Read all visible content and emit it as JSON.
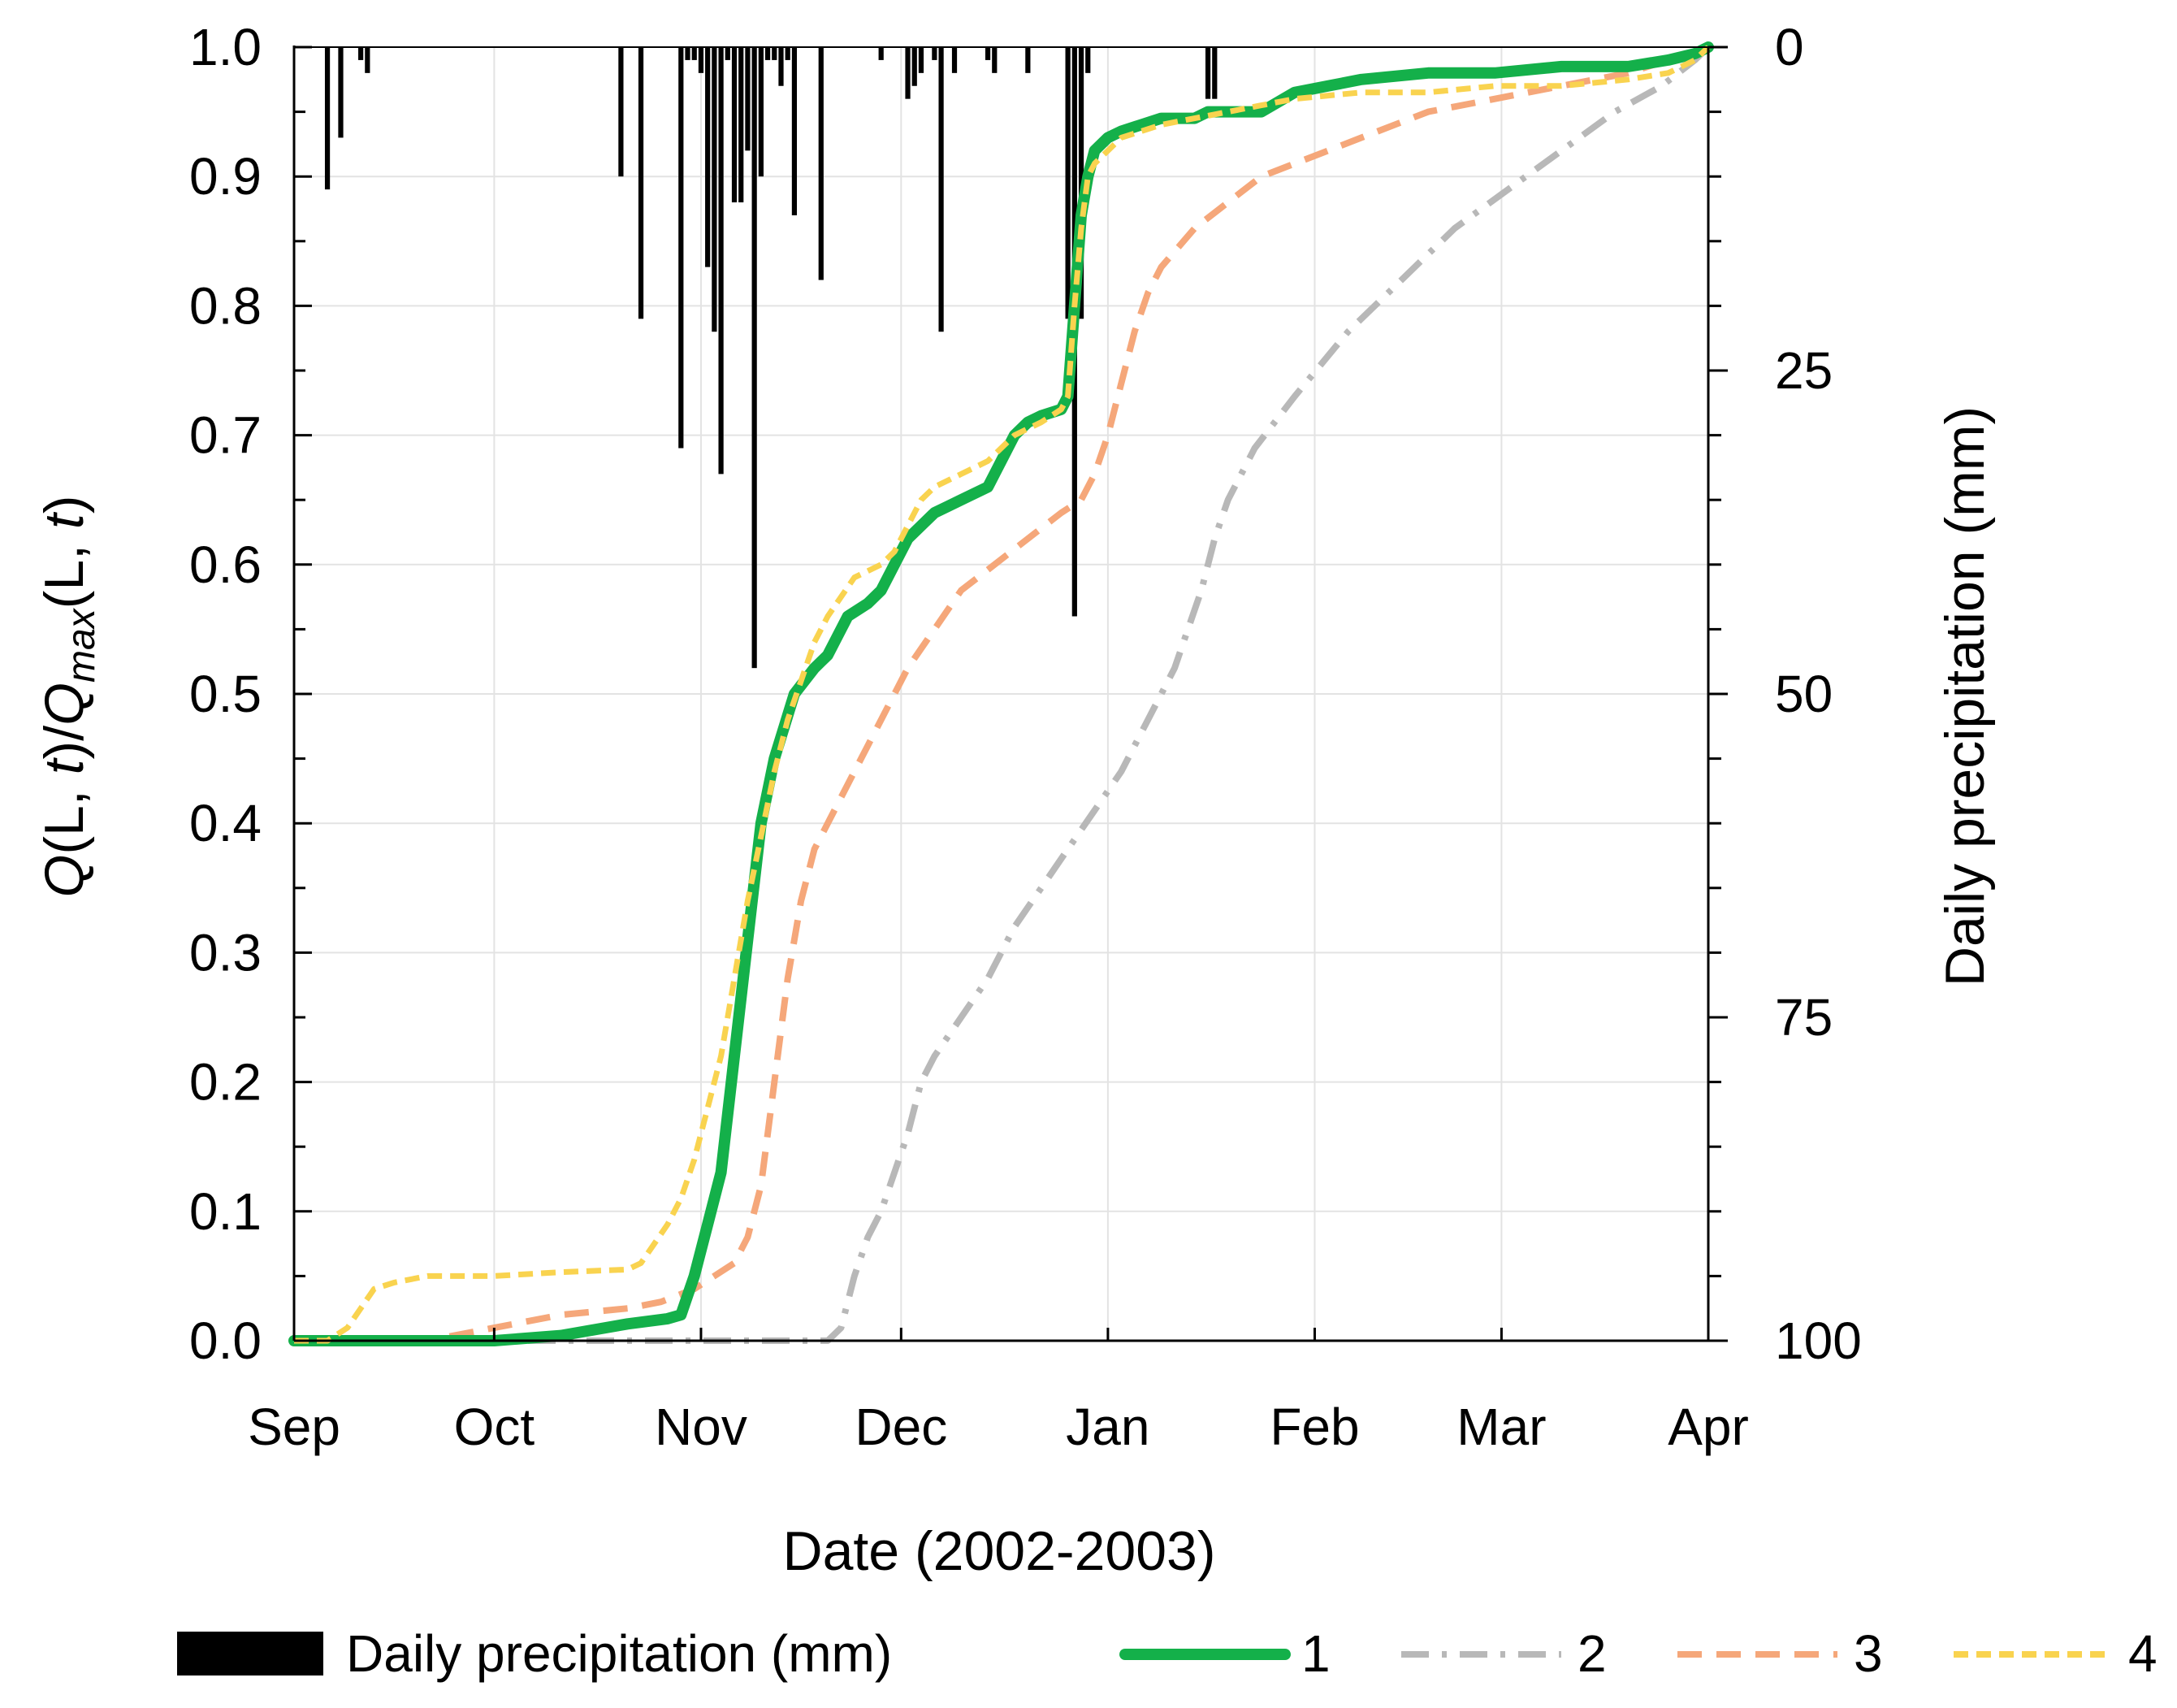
{
  "chart_data": {
    "type": "line",
    "xlabel": "Date (2002-2003)",
    "ylabel_left": {
      "q": "Q",
      "open1": "(L, ",
      "t1": "t",
      "close1": ")/",
      "q2": "Q",
      "sub": "max",
      "open2": "(L, ",
      "t2": "t",
      "close2": ")"
    },
    "ylabel_right": "Daily precipitation (mm)",
    "x_range_days": [
      0,
      212
    ],
    "x_month_ticks": [
      {
        "label": "Sep",
        "day": 0
      },
      {
        "label": "Oct",
        "day": 30
      },
      {
        "label": "Nov",
        "day": 61
      },
      {
        "label": "Dec",
        "day": 91
      },
      {
        "label": "Jan",
        "day": 122
      },
      {
        "label": "Feb",
        "day": 153
      },
      {
        "label": "Mar",
        "day": 181
      },
      {
        "label": "Apr",
        "day": 212
      }
    ],
    "y_left_range": [
      0.0,
      1.0
    ],
    "y_left_ticks": [
      "0.0",
      "0.1",
      "0.2",
      "0.3",
      "0.4",
      "0.5",
      "0.6",
      "0.7",
      "0.8",
      "0.9",
      "1.0"
    ],
    "y_right_range": [
      0,
      100
    ],
    "y_right_inverted": true,
    "y_right_ticks": [
      "0",
      "25",
      "50",
      "75",
      "100"
    ],
    "grid": true,
    "legend_position": "bottom",
    "precipitation": {
      "name": "Daily precipitation (mm)",
      "color": "#000000",
      "days": [
        5,
        7,
        10,
        11,
        49,
        52,
        58,
        59,
        60,
        61,
        62,
        63,
        64,
        65,
        66,
        67,
        68,
        69,
        70,
        71,
        72,
        73,
        74,
        75,
        79,
        88,
        92,
        93,
        94,
        96,
        97,
        99,
        104,
        105,
        110,
        116,
        117,
        118,
        119,
        137,
        138
      ],
      "values": [
        11.0,
        7.0,
        1.0,
        2.0,
        10.0,
        21.0,
        31.0,
        1.0,
        1.0,
        2.0,
        17.0,
        22.0,
        33.0,
        1.0,
        12.0,
        12.0,
        8.0,
        48.0,
        10.0,
        1.0,
        1.0,
        3.0,
        1.0,
        13.0,
        18.0,
        1.0,
        4.0,
        3.0,
        2.0,
        1.0,
        22.0,
        2.0,
        1.0,
        2.0,
        2.0,
        21.0,
        44.0,
        21.0,
        2.0,
        4.0,
        4.0
      ]
    },
    "series": [
      {
        "name": "1",
        "color": "#14b04a",
        "dash": "solid",
        "x": [
          0,
          20,
          30,
          40,
          50,
          56,
          58,
          60,
          62,
          64,
          66,
          68,
          70,
          72,
          75,
          78,
          80,
          83,
          86,
          88,
          90,
          92,
          94,
          96,
          98,
          100,
          104,
          106,
          108,
          110,
          112,
          115,
          116,
          117,
          118,
          119,
          120,
          121,
          122,
          124,
          127,
          130,
          135,
          137,
          140,
          145,
          150,
          155,
          160,
          170,
          180,
          190,
          200,
          206,
          210,
          212
        ],
        "y": [
          0.0,
          0.0,
          0.0,
          0.004,
          0.013,
          0.017,
          0.02,
          0.05,
          0.09,
          0.13,
          0.22,
          0.31,
          0.4,
          0.45,
          0.5,
          0.52,
          0.53,
          0.56,
          0.57,
          0.58,
          0.6,
          0.62,
          0.63,
          0.64,
          0.645,
          0.65,
          0.66,
          0.68,
          0.7,
          0.71,
          0.715,
          0.72,
          0.73,
          0.8,
          0.87,
          0.9,
          0.92,
          0.925,
          0.93,
          0.935,
          0.94,
          0.945,
          0.945,
          0.95,
          0.95,
          0.95,
          0.965,
          0.97,
          0.975,
          0.98,
          0.98,
          0.985,
          0.985,
          0.99,
          0.995,
          1.0
        ]
      },
      {
        "name": "2",
        "color": "#b8b8b8",
        "dash": "dashdot",
        "x": [
          0,
          60,
          75,
          80,
          82,
          84,
          86,
          88,
          90,
          92,
          94,
          96,
          100,
          104,
          108,
          112,
          116,
          120,
          124,
          128,
          132,
          134,
          136,
          138,
          140,
          144,
          150,
          158,
          166,
          174,
          182,
          190,
          198,
          205,
          210,
          212
        ],
        "y": [
          0.0,
          0.0,
          0.0,
          0.0,
          0.01,
          0.05,
          0.08,
          0.1,
          0.13,
          0.16,
          0.2,
          0.22,
          0.25,
          0.28,
          0.32,
          0.35,
          0.38,
          0.41,
          0.44,
          0.48,
          0.52,
          0.55,
          0.58,
          0.62,
          0.65,
          0.69,
          0.73,
          0.78,
          0.82,
          0.86,
          0.89,
          0.92,
          0.95,
          0.97,
          0.99,
          1.0
        ]
      },
      {
        "name": "3",
        "color": "#f5a77a",
        "dash": "dash",
        "x": [
          0,
          10,
          20,
          25,
          30,
          40,
          50,
          55,
          60,
          66,
          68,
          70,
          72,
          74,
          76,
          78,
          80,
          83,
          86,
          89,
          92,
          96,
          100,
          105,
          110,
          115,
          118,
          120,
          122,
          124,
          126,
          128,
          130,
          135,
          140,
          145,
          150,
          155,
          160,
          170,
          180,
          190,
          200,
          206,
          210,
          212
        ],
        "y": [
          0.0,
          0.0,
          0.0,
          0.005,
          0.01,
          0.02,
          0.025,
          0.03,
          0.04,
          0.06,
          0.08,
          0.12,
          0.2,
          0.28,
          0.34,
          0.38,
          0.4,
          0.43,
          0.46,
          0.49,
          0.52,
          0.55,
          0.58,
          0.6,
          0.62,
          0.64,
          0.65,
          0.67,
          0.7,
          0.74,
          0.78,
          0.81,
          0.83,
          0.86,
          0.88,
          0.9,
          0.91,
          0.92,
          0.93,
          0.95,
          0.96,
          0.97,
          0.98,
          0.99,
          0.995,
          1.0
        ]
      },
      {
        "name": "4",
        "color": "#f9d34f",
        "dash": "shortdash",
        "x": [
          0,
          5,
          8,
          10,
          12,
          15,
          20,
          30,
          40,
          50,
          52,
          54,
          56,
          58,
          60,
          62,
          64,
          66,
          68,
          70,
          72,
          74,
          76,
          78,
          80,
          84,
          88,
          90,
          92,
          94,
          96,
          100,
          104,
          108,
          112,
          115,
          116,
          117,
          118,
          119,
          120,
          122,
          124,
          127,
          130,
          135,
          140,
          145,
          150,
          160,
          170,
          180,
          190,
          200,
          206,
          210,
          212
        ],
        "y": [
          0.0,
          0.0,
          0.01,
          0.025,
          0.04,
          0.045,
          0.05,
          0.05,
          0.053,
          0.055,
          0.06,
          0.075,
          0.09,
          0.11,
          0.14,
          0.18,
          0.22,
          0.28,
          0.34,
          0.39,
          0.44,
          0.48,
          0.51,
          0.54,
          0.56,
          0.59,
          0.6,
          0.61,
          0.63,
          0.65,
          0.66,
          0.67,
          0.68,
          0.7,
          0.71,
          0.72,
          0.73,
          0.8,
          0.86,
          0.9,
          0.91,
          0.92,
          0.93,
          0.935,
          0.94,
          0.945,
          0.95,
          0.955,
          0.96,
          0.965,
          0.965,
          0.97,
          0.97,
          0.975,
          0.98,
          0.99,
          1.0
        ]
      }
    ]
  }
}
